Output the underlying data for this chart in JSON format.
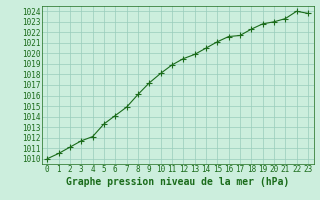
{
  "x": [
    0,
    1,
    2,
    3,
    4,
    5,
    6,
    7,
    8,
    9,
    10,
    11,
    12,
    13,
    14,
    15,
    16,
    17,
    18,
    19,
    20,
    21,
    22,
    23
  ],
  "y": [
    1010.0,
    1010.5,
    1011.1,
    1011.7,
    1012.1,
    1013.3,
    1014.1,
    1014.9,
    1016.1,
    1017.2,
    1018.1,
    1018.9,
    1019.5,
    1019.9,
    1020.5,
    1021.1,
    1021.6,
    1021.7,
    1022.3,
    1022.8,
    1023.0,
    1023.3,
    1024.0,
    1023.8
  ],
  "line_color": "#1a6b1a",
  "marker": "+",
  "marker_size": 4,
  "marker_color": "#1a6b1a",
  "bg_color": "#cceedd",
  "grid_color": "#99ccbb",
  "xlabel": "Graphe pression niveau de la mer (hPa)",
  "xlabel_color": "#1a6b1a",
  "xlabel_fontsize": 7,
  "tick_color": "#1a6b1a",
  "tick_fontsize": 5.5,
  "ylim": [
    1009.5,
    1024.5
  ],
  "yticks": [
    1010,
    1011,
    1012,
    1013,
    1014,
    1015,
    1016,
    1017,
    1018,
    1019,
    1020,
    1021,
    1022,
    1023,
    1024
  ],
  "xlim": [
    -0.5,
    23.5
  ],
  "xticks": [
    0,
    1,
    2,
    3,
    4,
    5,
    6,
    7,
    8,
    9,
    10,
    11,
    12,
    13,
    14,
    15,
    16,
    17,
    18,
    19,
    20,
    21,
    22,
    23
  ],
  "line_width": 0.8
}
